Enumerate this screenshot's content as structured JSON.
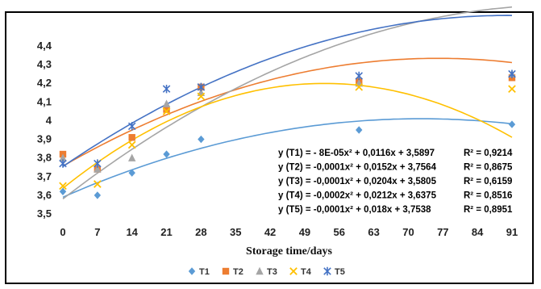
{
  "chart_data": {
    "type": "scatter",
    "title": "",
    "xlabel": "Storage time/days",
    "ylabel": "",
    "x_ticks": [
      "0",
      "7",
      "14",
      "21",
      "28",
      "35",
      "42",
      "49",
      "56",
      "63",
      "70",
      "77",
      "84",
      "91"
    ],
    "y_ticks": [
      "3,5",
      "3,6",
      "3,7",
      "3,8",
      "3,9",
      "4",
      "4,1",
      "4,2",
      "4,3",
      "4,4"
    ],
    "xlim": [
      0,
      91
    ],
    "ylim": [
      3.5,
      4.4
    ],
    "grid": false,
    "legend_position": "bottom",
    "x": [
      0,
      7,
      14,
      21,
      28,
      60,
      91
    ],
    "series": [
      {
        "name": "T1",
        "color": "#5b9bd5",
        "marker": "diamond",
        "values": [
          3.62,
          3.6,
          3.72,
          3.82,
          3.9,
          3.95,
          3.98
        ],
        "fit": [
          -8e-05,
          0.0116,
          3.5897
        ]
      },
      {
        "name": "T2",
        "color": "#ed7d31",
        "marker": "square",
        "values": [
          3.82,
          3.74,
          3.91,
          4.06,
          4.18,
          4.21,
          4.23
        ],
        "fit": [
          -0.0001,
          0.0152,
          3.7564
        ]
      },
      {
        "name": "T3",
        "color": "#a5a5a5",
        "marker": "triangle",
        "values": [
          3.8,
          3.74,
          3.8,
          4.09,
          4.15,
          4.2,
          4.25
        ],
        "fit": [
          -0.0001,
          0.0204,
          3.5805
        ]
      },
      {
        "name": "T4",
        "color": "#ffc000",
        "marker": "x",
        "values": [
          3.65,
          3.66,
          3.87,
          4.05,
          4.13,
          4.18,
          4.17
        ],
        "fit": [
          -0.0002,
          0.0212,
          3.6375
        ]
      },
      {
        "name": "T5",
        "color": "#4472c4",
        "marker": "star",
        "values": [
          3.77,
          3.77,
          3.97,
          4.17,
          4.18,
          4.24,
          4.25
        ],
        "fit": [
          -0.0001,
          0.018,
          3.7538
        ]
      }
    ],
    "annotations": [
      {
        "eq": "y (T1) = -  8E-05x² + 0,0116x + 3,5897",
        "r2": "R² = 0,9214"
      },
      {
        "eq": "y (T2) = -0,0001x² + 0,0152x + 3,7564",
        "r2": "R² = 0,8675"
      },
      {
        "eq": "y (T3) = -0,0001x² + 0,0204x + 3,5805",
        "r2": "R² = 0,6159"
      },
      {
        "eq": "y (T4) = -0,0002x² + 0,0212x + 3,6375",
        "r2": "R² = 0,8516"
      },
      {
        "eq": "y (T5) = -0,0001x² + 0,018x + 3,7538",
        "r2": "R² = 0,8951"
      }
    ]
  }
}
